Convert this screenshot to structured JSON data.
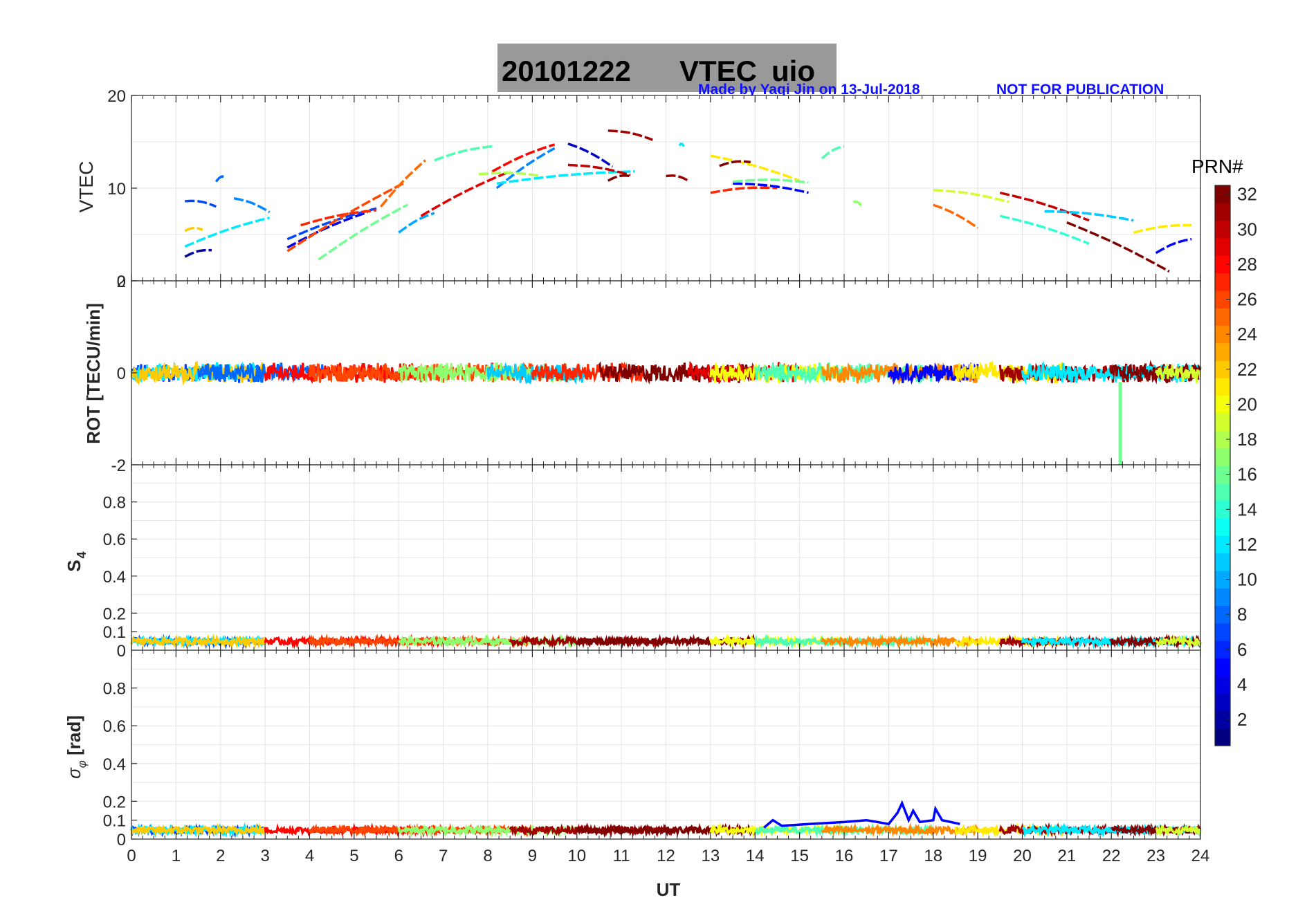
{
  "header": {
    "date": "20101222",
    "title_main": "VTEC",
    "station": "uio",
    "credit": "Made by Yaqi Jin on 13-Jul-2018",
    "notice": "NOT FOR PUBLICATION"
  },
  "colorbar": {
    "title": "PRN#",
    "min": 1,
    "max": 32,
    "ticks": [
      "2",
      "4",
      "6",
      "8",
      "10",
      "12",
      "14",
      "16",
      "18",
      "20",
      "22",
      "24",
      "26",
      "28",
      "30",
      "32"
    ],
    "colormap": "jet"
  },
  "chart_data": [
    {
      "type": "scatter",
      "panel": "vtec",
      "ylabel": "VTEC",
      "xlim": [
        0,
        24
      ],
      "ylim": [
        0,
        20
      ],
      "yticks": [
        "20",
        "10",
        "0"
      ],
      "grid": true,
      "series": [
        {
          "prn": 7,
          "x": [
            1.2,
            1.9
          ],
          "y": [
            8.6,
            8.0
          ]
        },
        {
          "prn": 8,
          "x": [
            1.9,
            2.1
          ],
          "y": [
            10.7,
            11.2
          ]
        },
        {
          "prn": 2,
          "x": [
            1.2,
            1.8
          ],
          "y": [
            2.6,
            3.3
          ]
        },
        {
          "prn": 22,
          "x": [
            1.2,
            1.6
          ],
          "y": [
            5.4,
            5.5
          ]
        },
        {
          "prn": 12,
          "x": [
            1.2,
            3.1
          ],
          "y": [
            3.7,
            6.8
          ]
        },
        {
          "prn": 9,
          "x": [
            2.3,
            3.1
          ],
          "y": [
            8.9,
            7.4
          ]
        },
        {
          "prn": 4,
          "x": [
            3.5,
            5.3
          ],
          "y": [
            3.6,
            7.4
          ]
        },
        {
          "prn": 7,
          "x": [
            3.5,
            5.5
          ],
          "y": [
            4.5,
            7.8
          ]
        },
        {
          "prn": 27,
          "x": [
            3.8,
            5.5
          ],
          "y": [
            6.0,
            7.6
          ]
        },
        {
          "prn": 26,
          "x": [
            3.5,
            6.1
          ],
          "y": [
            3.2,
            10.5
          ]
        },
        {
          "prn": 16,
          "x": [
            4.2,
            6.2
          ],
          "y": [
            2.3,
            8.2
          ]
        },
        {
          "prn": 25,
          "x": [
            5.6,
            6.6
          ],
          "y": [
            8.0,
            13.0
          ]
        },
        {
          "prn": 10,
          "x": [
            6.0,
            6.8
          ],
          "y": [
            5.2,
            7.3
          ]
        },
        {
          "prn": 15,
          "x": [
            6.8,
            8.1
          ],
          "y": [
            13.0,
            14.5
          ]
        },
        {
          "prn": 29,
          "x": [
            6.5,
            8.5
          ],
          "y": [
            7.0,
            11.8
          ]
        },
        {
          "prn": 28,
          "x": [
            8.1,
            9.5
          ],
          "y": [
            11.8,
            14.7
          ]
        },
        {
          "prn": 9,
          "x": [
            8.2,
            9.5
          ],
          "y": [
            10.0,
            14.3
          ]
        },
        {
          "prn": 18,
          "x": [
            7.8,
            9.2
          ],
          "y": [
            11.5,
            11.3
          ]
        },
        {
          "prn": 12,
          "x": [
            8.2,
            11.3
          ],
          "y": [
            10.5,
            11.8
          ]
        },
        {
          "prn": 3,
          "x": [
            9.8,
            10.8
          ],
          "y": [
            14.8,
            12.3
          ]
        },
        {
          "prn": 30,
          "x": [
            9.8,
            11.2
          ],
          "y": [
            12.5,
            11.4
          ]
        },
        {
          "prn": 31,
          "x": [
            10.7,
            11.7
          ],
          "y": [
            16.2,
            15.2
          ]
        },
        {
          "prn": 32,
          "x": [
            10.7,
            11.2
          ],
          "y": [
            10.8,
            11.3
          ]
        },
        {
          "prn": 31,
          "x": [
            12.0,
            12.5
          ],
          "y": [
            11.3,
            10.8
          ]
        },
        {
          "prn": 12,
          "x": [
            12.3,
            12.4
          ],
          "y": [
            14.6,
            14.5
          ]
        },
        {
          "prn": 21,
          "x": [
            13.0,
            15.0
          ],
          "y": [
            13.5,
            10.8
          ]
        },
        {
          "prn": 32,
          "x": [
            13.2,
            13.9
          ],
          "y": [
            12.4,
            12.8
          ]
        },
        {
          "prn": 27,
          "x": [
            13.0,
            14.5
          ],
          "y": [
            9.5,
            10.0
          ]
        },
        {
          "prn": 5,
          "x": [
            13.5,
            15.2
          ],
          "y": [
            10.5,
            9.5
          ]
        },
        {
          "prn": 16,
          "x": [
            13.5,
            15.2
          ],
          "y": [
            10.7,
            10.6
          ]
        },
        {
          "prn": 15,
          "x": [
            15.5,
            16.0
          ],
          "y": [
            13.2,
            14.5
          ]
        },
        {
          "prn": 17,
          "x": [
            16.2,
            16.4
          ],
          "y": [
            8.5,
            8.0
          ]
        },
        {
          "prn": 19,
          "x": [
            18.0,
            19.7
          ],
          "y": [
            9.8,
            8.5
          ]
        },
        {
          "prn": 25,
          "x": [
            18.0,
            19.0
          ],
          "y": [
            8.2,
            5.7
          ]
        },
        {
          "prn": 30,
          "x": [
            19.5,
            21.5
          ],
          "y": [
            9.5,
            6.5
          ]
        },
        {
          "prn": 14,
          "x": [
            19.5,
            21.5
          ],
          "y": [
            7.0,
            4.0
          ]
        },
        {
          "prn": 11,
          "x": [
            20.5,
            22.5
          ],
          "y": [
            7.5,
            6.5
          ]
        },
        {
          "prn": 32,
          "x": [
            21.0,
            23.3
          ],
          "y": [
            6.3,
            1.0
          ]
        },
        {
          "prn": 21,
          "x": [
            22.5,
            23.8
          ],
          "y": [
            5.2,
            6.0
          ]
        },
        {
          "prn": 5,
          "x": [
            23.0,
            23.8
          ],
          "y": [
            3.0,
            4.5
          ]
        }
      ]
    },
    {
      "type": "line",
      "panel": "rot",
      "ylabel": "ROT [TECU/min]",
      "xlim": [
        0,
        24
      ],
      "ylim": [
        -2,
        2
      ],
      "yticks": [
        "2",
        "0",
        "-2"
      ],
      "grid": false,
      "note": "ROT values cluster around 0, amplitude about 0.2 TECU/min",
      "typical_amplitude": 0.2,
      "spike": {
        "prn": 16,
        "x": 22.2,
        "y_min": -2,
        "y_max": -0.2
      }
    },
    {
      "type": "line",
      "panel": "s4",
      "ylabel": "S4",
      "xlim": [
        0,
        24
      ],
      "ylim": [
        0,
        1
      ],
      "yticks": [
        "0.8",
        "0.6",
        "0.4",
        "0.2",
        "0.1",
        "0"
      ],
      "grid": true,
      "typical_value": 0.05,
      "peak_value": 0.1
    },
    {
      "type": "line",
      "panel": "sigma_phi",
      "ylabel": "σφ [rad]",
      "xlim": [
        0,
        24
      ],
      "ylim": [
        0,
        1
      ],
      "yticks": [
        "0.8",
        "0.6",
        "0.4",
        "0.2",
        "0.1",
        "0"
      ],
      "xticks": [
        "0",
        "1",
        "2",
        "3",
        "4",
        "5",
        "6",
        "7",
        "8",
        "9",
        "10",
        "11",
        "12",
        "13",
        "14",
        "15",
        "16",
        "17",
        "18",
        "19",
        "20",
        "21",
        "22",
        "23",
        "24"
      ],
      "xlabel": "UT",
      "grid": true,
      "typical_value": 0.05,
      "peak": {
        "x": 17.3,
        "y": 0.19
      }
    }
  ]
}
